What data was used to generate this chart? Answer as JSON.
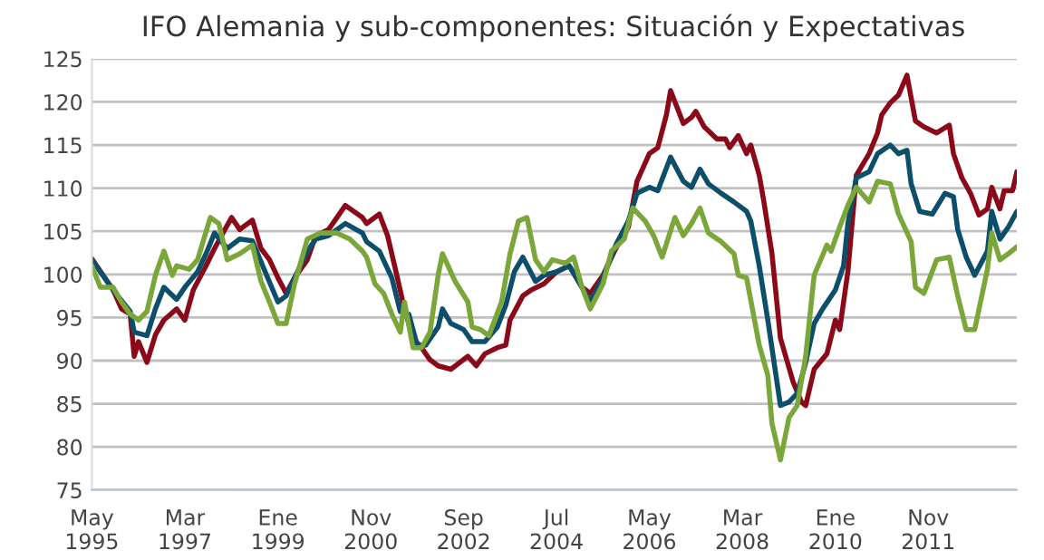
{
  "chart_data": {
    "type": "line",
    "title": "IFO Alemania y sub-componentes: Situación y Expectativas",
    "xlim": [
      "1995-05",
      "2013-08"
    ],
    "xticks": [
      {
        "value": "1995-05",
        "label": "May\n1995"
      },
      {
        "value": "1997-03",
        "label": "Mar\n1997"
      },
      {
        "value": "1999-01",
        "label": "Ene\n1999"
      },
      {
        "value": "2000-11",
        "label": "Nov\n2000"
      },
      {
        "value": "2002-09",
        "label": "Sep\n2002"
      },
      {
        "value": "2004-07",
        "label": "Jul\n2004"
      },
      {
        "value": "2006-05",
        "label": "May\n2006"
      },
      {
        "value": "2008-03",
        "label": "Mar\n2008"
      },
      {
        "value": "2010-01",
        "label": "Ene\n2010"
      },
      {
        "value": "2011-11",
        "label": "Nov\n2011"
      }
    ],
    "ylim": [
      75,
      125
    ],
    "yticks": [
      75,
      80,
      85,
      90,
      95,
      100,
      105,
      110,
      115,
      120,
      125
    ],
    "grid": "y",
    "legend": false,
    "marker": "none",
    "line_style": "solid",
    "series": [
      {
        "color": "#8b0a1a",
        "x": [
          "1995-05",
          "1995-10",
          "1995-12",
          "1996-02",
          "1996-03",
          "1996-04",
          "1996-06",
          "1996-08",
          "1996-10",
          "1997-01",
          "1997-03",
          "1997-05",
          "1997-08",
          "1997-10",
          "1997-12",
          "1998-02",
          "1998-04",
          "1998-07",
          "1998-09",
          "1998-11",
          "1999-01",
          "1999-03",
          "1999-05",
          "1999-08",
          "1999-10",
          "2000-01",
          "2000-05",
          "2000-09",
          "2000-10",
          "2001-01",
          "2001-03",
          "2001-05",
          "2001-07",
          "2001-09",
          "2001-11",
          "2002-01",
          "2002-03",
          "2002-06",
          "2002-10",
          "2002-12",
          "2003-02",
          "2003-05",
          "2003-07",
          "2003-08",
          "2003-11",
          "2004-01",
          "2004-04",
          "2004-07",
          "2004-10",
          "2005-01",
          "2005-03",
          "2005-06",
          "2005-09",
          "2005-12",
          "2006-02",
          "2006-05",
          "2006-07",
          "2006-09",
          "2006-10",
          "2007-01",
          "2007-03",
          "2007-04",
          "2007-06",
          "2007-09",
          "2007-11",
          "2007-12",
          "2008-02",
          "2008-04",
          "2008-05",
          "2008-07",
          "2008-08",
          "2008-10",
          "2008-12",
          "2009-03",
          "2009-05",
          "2009-06",
          "2009-08",
          "2009-11",
          "2010-01",
          "2010-02",
          "2010-04",
          "2010-06",
          "2010-09",
          "2010-11",
          "2010-12",
          "2011-02",
          "2011-04",
          "2011-06",
          "2011-08",
          "2011-10",
          "2012-01",
          "2012-04",
          "2012-05",
          "2012-07",
          "2012-09",
          "2012-11",
          "2013-01",
          "2013-02",
          "2013-04",
          "2013-05",
          "2013-07",
          "2013-08"
        ],
        "values": [
          101.8,
          98.2,
          96,
          95.4,
          90.5,
          92.2,
          89.8,
          93,
          94.7,
          96,
          94.7,
          98.2,
          101,
          103,
          104.8,
          106.6,
          105.2,
          106.3,
          103,
          101.7,
          99.6,
          97.8,
          99.6,
          101.7,
          104.5,
          105.2,
          108,
          106.6,
          105.9,
          107,
          104.5,
          100.3,
          96,
          92.6,
          91.5,
          90.1,
          89.4,
          89,
          90.5,
          89.4,
          90.8,
          91.5,
          91.8,
          94.7,
          97.5,
          98.2,
          98.9,
          100.3,
          101,
          98.5,
          97.8,
          99.9,
          103,
          105.5,
          110.8,
          114,
          114.7,
          118.5,
          121.3,
          117.5,
          118.2,
          118.9,
          117.1,
          115.7,
          115.7,
          114.7,
          116.1,
          114,
          115,
          111.5,
          108.7,
          102.4,
          92.6,
          87.6,
          85.2,
          84.8,
          89,
          90.8,
          94.7,
          93.6,
          100.3,
          111.5,
          114,
          116.4,
          118.5,
          119.9,
          120.8,
          123.1,
          117.8,
          117.1,
          116.4,
          117.3,
          114,
          111.2,
          109.4,
          106.9,
          107.6,
          110.1,
          107.6,
          109.7,
          109.7,
          111.9
        ]
      },
      {
        "color": "#0d4f6b",
        "x": [
          "1995-05",
          "1995-10",
          "1996-02",
          "1996-03",
          "1996-06",
          "1996-08",
          "1996-10",
          "1997-01",
          "1997-03",
          "1997-06",
          "1997-08",
          "1997-10",
          "1998-01",
          "1998-04",
          "1998-07",
          "1998-10",
          "1999-01",
          "1999-03",
          "1999-05",
          "1999-08",
          "1999-10",
          "2000-01",
          "2000-05",
          "2000-09",
          "2000-10",
          "2001-01",
          "2001-04",
          "2001-06",
          "2001-08",
          "2001-10",
          "2001-12",
          "2002-03",
          "2002-04",
          "2002-06",
          "2002-09",
          "2002-11",
          "2003-02",
          "2003-05",
          "2003-07",
          "2003-09",
          "2003-11",
          "2004-02",
          "2004-04",
          "2004-07",
          "2004-10",
          "2005-01",
          "2005-03",
          "2005-06",
          "2005-09",
          "2005-12",
          "2006-02",
          "2006-05",
          "2006-07",
          "2006-10",
          "2007-01",
          "2007-03",
          "2007-05",
          "2007-07",
          "2007-10",
          "2008-01",
          "2008-04",
          "2008-05",
          "2008-07",
          "2008-09",
          "2008-12",
          "2009-02",
          "2009-04",
          "2009-06",
          "2009-08",
          "2009-10",
          "2010-01",
          "2010-03",
          "2010-04",
          "2010-06",
          "2010-09",
          "2010-11",
          "2011-02",
          "2011-04",
          "2011-06",
          "2011-07",
          "2011-09",
          "2011-12",
          "2012-03",
          "2012-05",
          "2012-06",
          "2012-08",
          "2012-10",
          "2013-01",
          "2013-02",
          "2013-04",
          "2013-06",
          "2013-08"
        ],
        "values": [
          101.7,
          98.2,
          95.7,
          93.3,
          92.9,
          96,
          98.5,
          97.1,
          98.5,
          100.3,
          102.4,
          104.8,
          103,
          104.1,
          103.9,
          100.3,
          96.8,
          97.5,
          99.6,
          102.7,
          104.1,
          104.5,
          105.9,
          104.8,
          103.8,
          102.7,
          99.6,
          95.7,
          95.4,
          91.8,
          91.8,
          93.9,
          96,
          94.3,
          93.6,
          92.2,
          92.2,
          93.9,
          96.4,
          100.3,
          102,
          99.2,
          99.9,
          100.3,
          101,
          98.5,
          96.8,
          99.6,
          103.4,
          106.2,
          109.4,
          110.1,
          109.7,
          113.6,
          110.8,
          110.1,
          112.2,
          110.5,
          109.4,
          108.4,
          107.3,
          106.2,
          101,
          94.7,
          84.8,
          85.2,
          86.2,
          89.8,
          94.3,
          96,
          98.2,
          101,
          105.9,
          111.2,
          111.9,
          114,
          115,
          114,
          114.4,
          110.5,
          107.3,
          107,
          109.4,
          109,
          105.2,
          102,
          99.9,
          102.7,
          107.3,
          104.1,
          105.5,
          107.3
        ]
      },
      {
        "color": "#7aa63a",
        "x": [
          "1995-05",
          "1995-07",
          "1995-10",
          "1995-12",
          "1996-02",
          "1996-04",
          "1996-06",
          "1996-08",
          "1996-10",
          "1996-12",
          "1997-01",
          "1997-04",
          "1997-06",
          "1997-09",
          "1997-11",
          "1998-01",
          "1998-04",
          "1998-07",
          "1998-09",
          "1998-11",
          "1999-01",
          "1999-03",
          "1999-05",
          "1999-08",
          "1999-11",
          "2000-03",
          "2000-06",
          "2000-09",
          "2000-10",
          "2000-12",
          "2001-02",
          "2001-04",
          "2001-06",
          "2001-07",
          "2001-09",
          "2001-11",
          "2002-01",
          "2002-03",
          "2002-04",
          "2002-07",
          "2002-10",
          "2002-11",
          "2003-01",
          "2003-03",
          "2003-06",
          "2003-08",
          "2003-10",
          "2003-12",
          "2004-02",
          "2004-04",
          "2004-06",
          "2004-09",
          "2004-11",
          "2005-01",
          "2005-03",
          "2005-06",
          "2005-08",
          "2005-11",
          "2006-01",
          "2006-04",
          "2006-06",
          "2006-08",
          "2006-11",
          "2007-01",
          "2007-03",
          "2007-05",
          "2007-07",
          "2007-10",
          "2008-01",
          "2008-02",
          "2008-04",
          "2008-07",
          "2008-09",
          "2008-10",
          "2008-12",
          "2009-02",
          "2009-04",
          "2009-06",
          "2009-08",
          "2009-11",
          "2009-12",
          "2010-02",
          "2010-04",
          "2010-06",
          "2010-09",
          "2010-11",
          "2011-02",
          "2011-04",
          "2011-07",
          "2011-08",
          "2011-10",
          "2012-01",
          "2012-04",
          "2012-06",
          "2012-08",
          "2012-10",
          "2013-01",
          "2013-02",
          "2013-04",
          "2013-06",
          "2013-08"
        ],
        "values": [
          101,
          98.5,
          98.5,
          96.8,
          95.4,
          94.7,
          95.7,
          99.9,
          102.7,
          99.9,
          101,
          100.6,
          101.7,
          106.6,
          105.9,
          101.7,
          102.4,
          103.4,
          99.2,
          96.8,
          94.3,
          94.3,
          98.9,
          104.1,
          104.8,
          104.8,
          104.1,
          102.7,
          102,
          98.9,
          97.8,
          95.4,
          93.3,
          96.8,
          91.5,
          91.5,
          93.3,
          99.9,
          102.4,
          99.2,
          96.8,
          93.9,
          93.6,
          92.9,
          96.8,
          102.4,
          106.2,
          106.6,
          101.7,
          100.3,
          101.7,
          101.3,
          102,
          98.5,
          96,
          98.9,
          102.7,
          104.1,
          107.7,
          106.2,
          104.5,
          102,
          106.6,
          104.5,
          105.9,
          107.7,
          104.8,
          103.8,
          102.4,
          99.9,
          99.6,
          91.8,
          88.3,
          82.7,
          78.5,
          83.4,
          84.8,
          90.5,
          99.9,
          103.4,
          102.7,
          105.5,
          108,
          110.1,
          108.4,
          110.8,
          110.5,
          107,
          103.8,
          98.5,
          97.8,
          101.7,
          102,
          97.5,
          93.6,
          93.6,
          100.6,
          104.8,
          101.7,
          102.4,
          103.2
        ]
      }
    ]
  }
}
